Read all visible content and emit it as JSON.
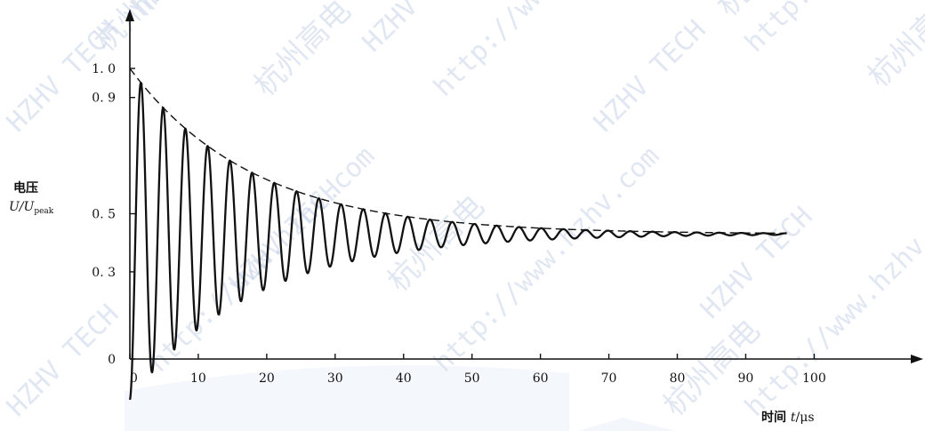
{
  "chart_data": {
    "type": "line",
    "xlabel_prefix": "时间 ",
    "xlabel_var": "t",
    "xlabel_unit": "/μs",
    "ylabel_line1": "电压",
    "ylabel_var": "U/U",
    "ylabel_sub": "peak",
    "x_ticks": [
      0,
      10,
      20,
      30,
      40,
      50,
      60,
      70,
      80,
      90,
      100
    ],
    "y_ticks": [
      0,
      0.3,
      0.5,
      0.9,
      1.0
    ],
    "y_tick_labels": [
      "0",
      "0. 3",
      "0. 5",
      "0. 9",
      "1. 0"
    ],
    "xlim": [
      0,
      111
    ],
    "ylim": [
      0,
      1.0
    ],
    "grid": false,
    "series": [
      {
        "style": "solid",
        "x_start": 0,
        "x_end": 96,
        "function": "damped_cosine",
        "final_value": 0.43,
        "initial_deviation": 0.57,
        "period": 3.25,
        "decay_time_constant": 18
      },
      {
        "style": "dashed",
        "x_start": 0,
        "x_end": 96,
        "function": "envelope",
        "final_value": 0.43,
        "initial_deviation": 0.57,
        "decay_time_constant": 18
      }
    ]
  },
  "watermarks": [
    "杭州高电",
    "HZHV TECH",
    "http://www.hzhv.com"
  ],
  "colors": {
    "line": "#111111",
    "axis": "#111111",
    "watermark": "#c9d4e8"
  }
}
